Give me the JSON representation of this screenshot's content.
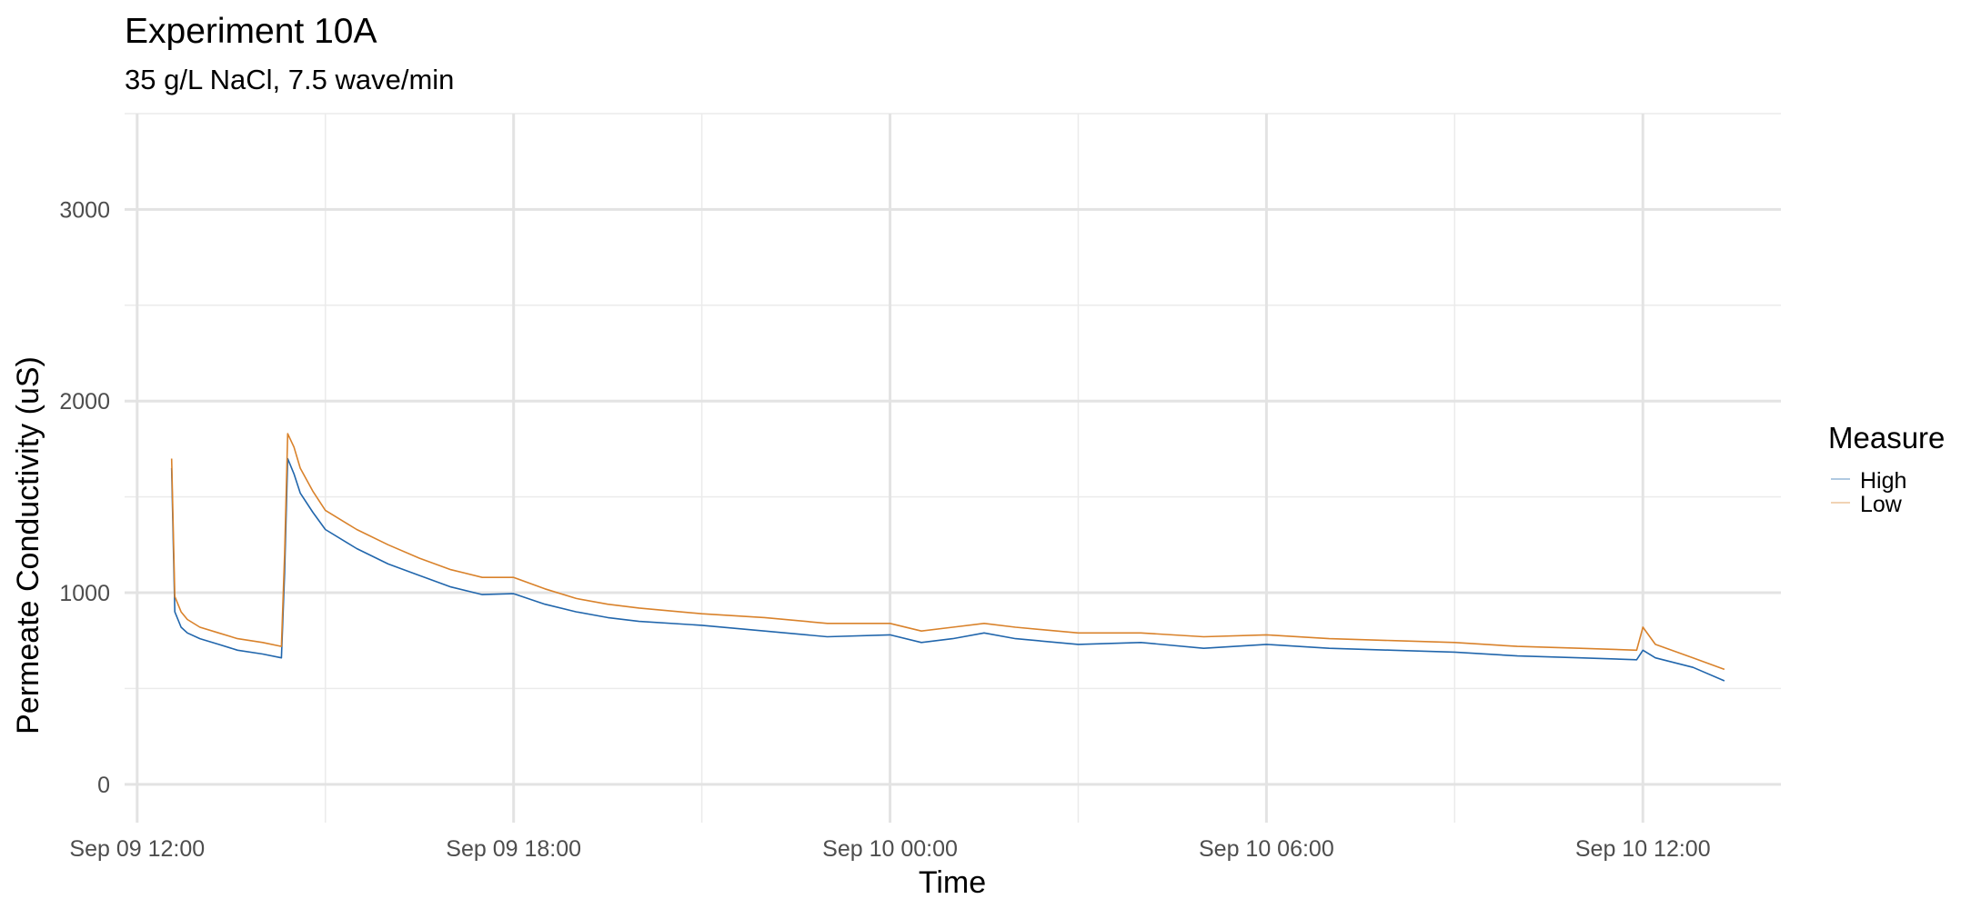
{
  "chart_data": {
    "type": "line",
    "title": "Experiment 10A",
    "subtitle": "35 g/L NaCl, 7.5 wave/min",
    "xlabel": "Time",
    "ylabel": "Permeate Conductivity (uS)",
    "x_unit": "hours from Sep 09 12:00",
    "xlim": [
      -0.2,
      26.2
    ],
    "ylim": [
      -200,
      3500
    ],
    "x_ticks": [
      {
        "value": 0,
        "label": "Sep 09 12:00"
      },
      {
        "value": 6,
        "label": "Sep 09 18:00"
      },
      {
        "value": 12,
        "label": "Sep 10 00:00"
      },
      {
        "value": 18,
        "label": "Sep 10 06:00"
      },
      {
        "value": 24,
        "label": "Sep 10 12:00"
      }
    ],
    "x_minor_ticks": [
      3,
      9,
      15,
      21
    ],
    "y_ticks": [
      {
        "value": 0,
        "label": "0"
      },
      {
        "value": 1000,
        "label": "1000"
      },
      {
        "value": 2000,
        "label": "2000"
      },
      {
        "value": 3000,
        "label": "3000"
      }
    ],
    "y_minor_ticks": [
      500,
      1500,
      2500,
      3500
    ],
    "grid": true,
    "legend": {
      "title": "Measure",
      "position": "right"
    },
    "series": [
      {
        "name": "High",
        "color": "#2166ac",
        "x": [
          0.55,
          0.6,
          0.7,
          0.8,
          1.0,
          1.3,
          1.6,
          2.0,
          2.3,
          2.35,
          2.4,
          2.5,
          2.6,
          2.8,
          3.0,
          3.5,
          4.0,
          4.5,
          5.0,
          5.5,
          6.0,
          6.5,
          7.0,
          7.5,
          8.0,
          9.0,
          10.0,
          11.0,
          12.0,
          12.5,
          13.0,
          13.5,
          14.0,
          15.0,
          16.0,
          17.0,
          18.0,
          19.0,
          20.0,
          21.0,
          22.0,
          23.0,
          23.9,
          24.0,
          24.2,
          24.8,
          25.3
        ],
        "y": [
          1650,
          900,
          820,
          790,
          760,
          730,
          700,
          680,
          660,
          1100,
          1700,
          1620,
          1520,
          1420,
          1330,
          1230,
          1150,
          1090,
          1030,
          990,
          995,
          940,
          900,
          870,
          850,
          830,
          800,
          770,
          780,
          740,
          760,
          790,
          760,
          730,
          740,
          710,
          730,
          710,
          700,
          690,
          670,
          660,
          650,
          700,
          660,
          610,
          540
        ]
      },
      {
        "name": "Low",
        "color": "#d9822b",
        "x": [
          0.55,
          0.6,
          0.7,
          0.8,
          1.0,
          1.3,
          1.6,
          2.0,
          2.3,
          2.35,
          2.4,
          2.5,
          2.6,
          2.8,
          3.0,
          3.5,
          4.0,
          4.5,
          5.0,
          5.5,
          6.0,
          6.5,
          7.0,
          7.5,
          8.0,
          9.0,
          10.0,
          11.0,
          12.0,
          12.5,
          13.0,
          13.5,
          14.0,
          15.0,
          16.0,
          17.0,
          18.0,
          19.0,
          20.0,
          21.0,
          22.0,
          23.0,
          23.9,
          24.0,
          24.2,
          24.8,
          25.3
        ],
        "y": [
          1700,
          980,
          900,
          860,
          820,
          790,
          760,
          740,
          720,
          1200,
          1830,
          1760,
          1650,
          1530,
          1430,
          1330,
          1250,
          1180,
          1120,
          1080,
          1080,
          1020,
          970,
          940,
          920,
          890,
          870,
          840,
          840,
          800,
          820,
          840,
          820,
          790,
          790,
          770,
          780,
          760,
          750,
          740,
          720,
          710,
          700,
          820,
          730,
          660,
          600
        ]
      }
    ]
  }
}
